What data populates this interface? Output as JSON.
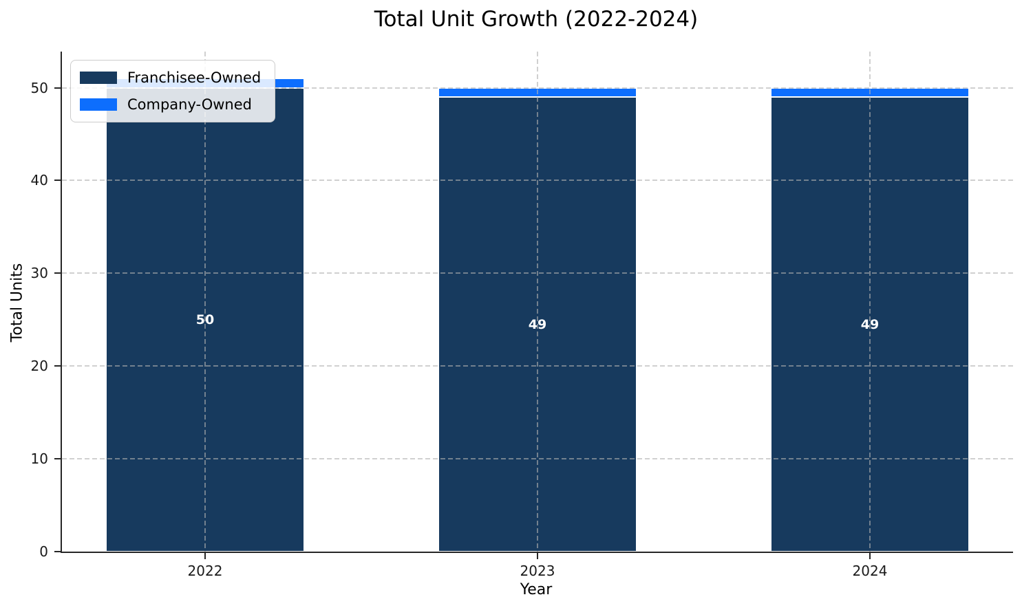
{
  "chart_data": {
    "type": "bar",
    "stacked": true,
    "title": "Total Unit Growth (2022-2024)",
    "xlabel": "Year",
    "ylabel": "Total Units",
    "categories": [
      "2022",
      "2023",
      "2024"
    ],
    "series": [
      {
        "name": "Franchisee-Owned",
        "color": "#173A5E",
        "values": [
          50,
          49,
          49
        ],
        "labels": [
          "50",
          "49",
          "49"
        ]
      },
      {
        "name": "Company-Owned",
        "color": "#0D6EFD",
        "values": [
          1,
          1,
          1
        ],
        "labels": [
          "",
          "",
          ""
        ]
      }
    ],
    "totals": [
      51,
      50,
      50
    ],
    "ylim": [
      0,
      53.9
    ],
    "yticks": [
      0,
      10,
      20,
      30,
      40,
      50
    ],
    "ytick_labels": [
      "0",
      "10",
      "20",
      "30",
      "40",
      "50"
    ],
    "grid": "dashed",
    "legend_position": "upper-left"
  }
}
